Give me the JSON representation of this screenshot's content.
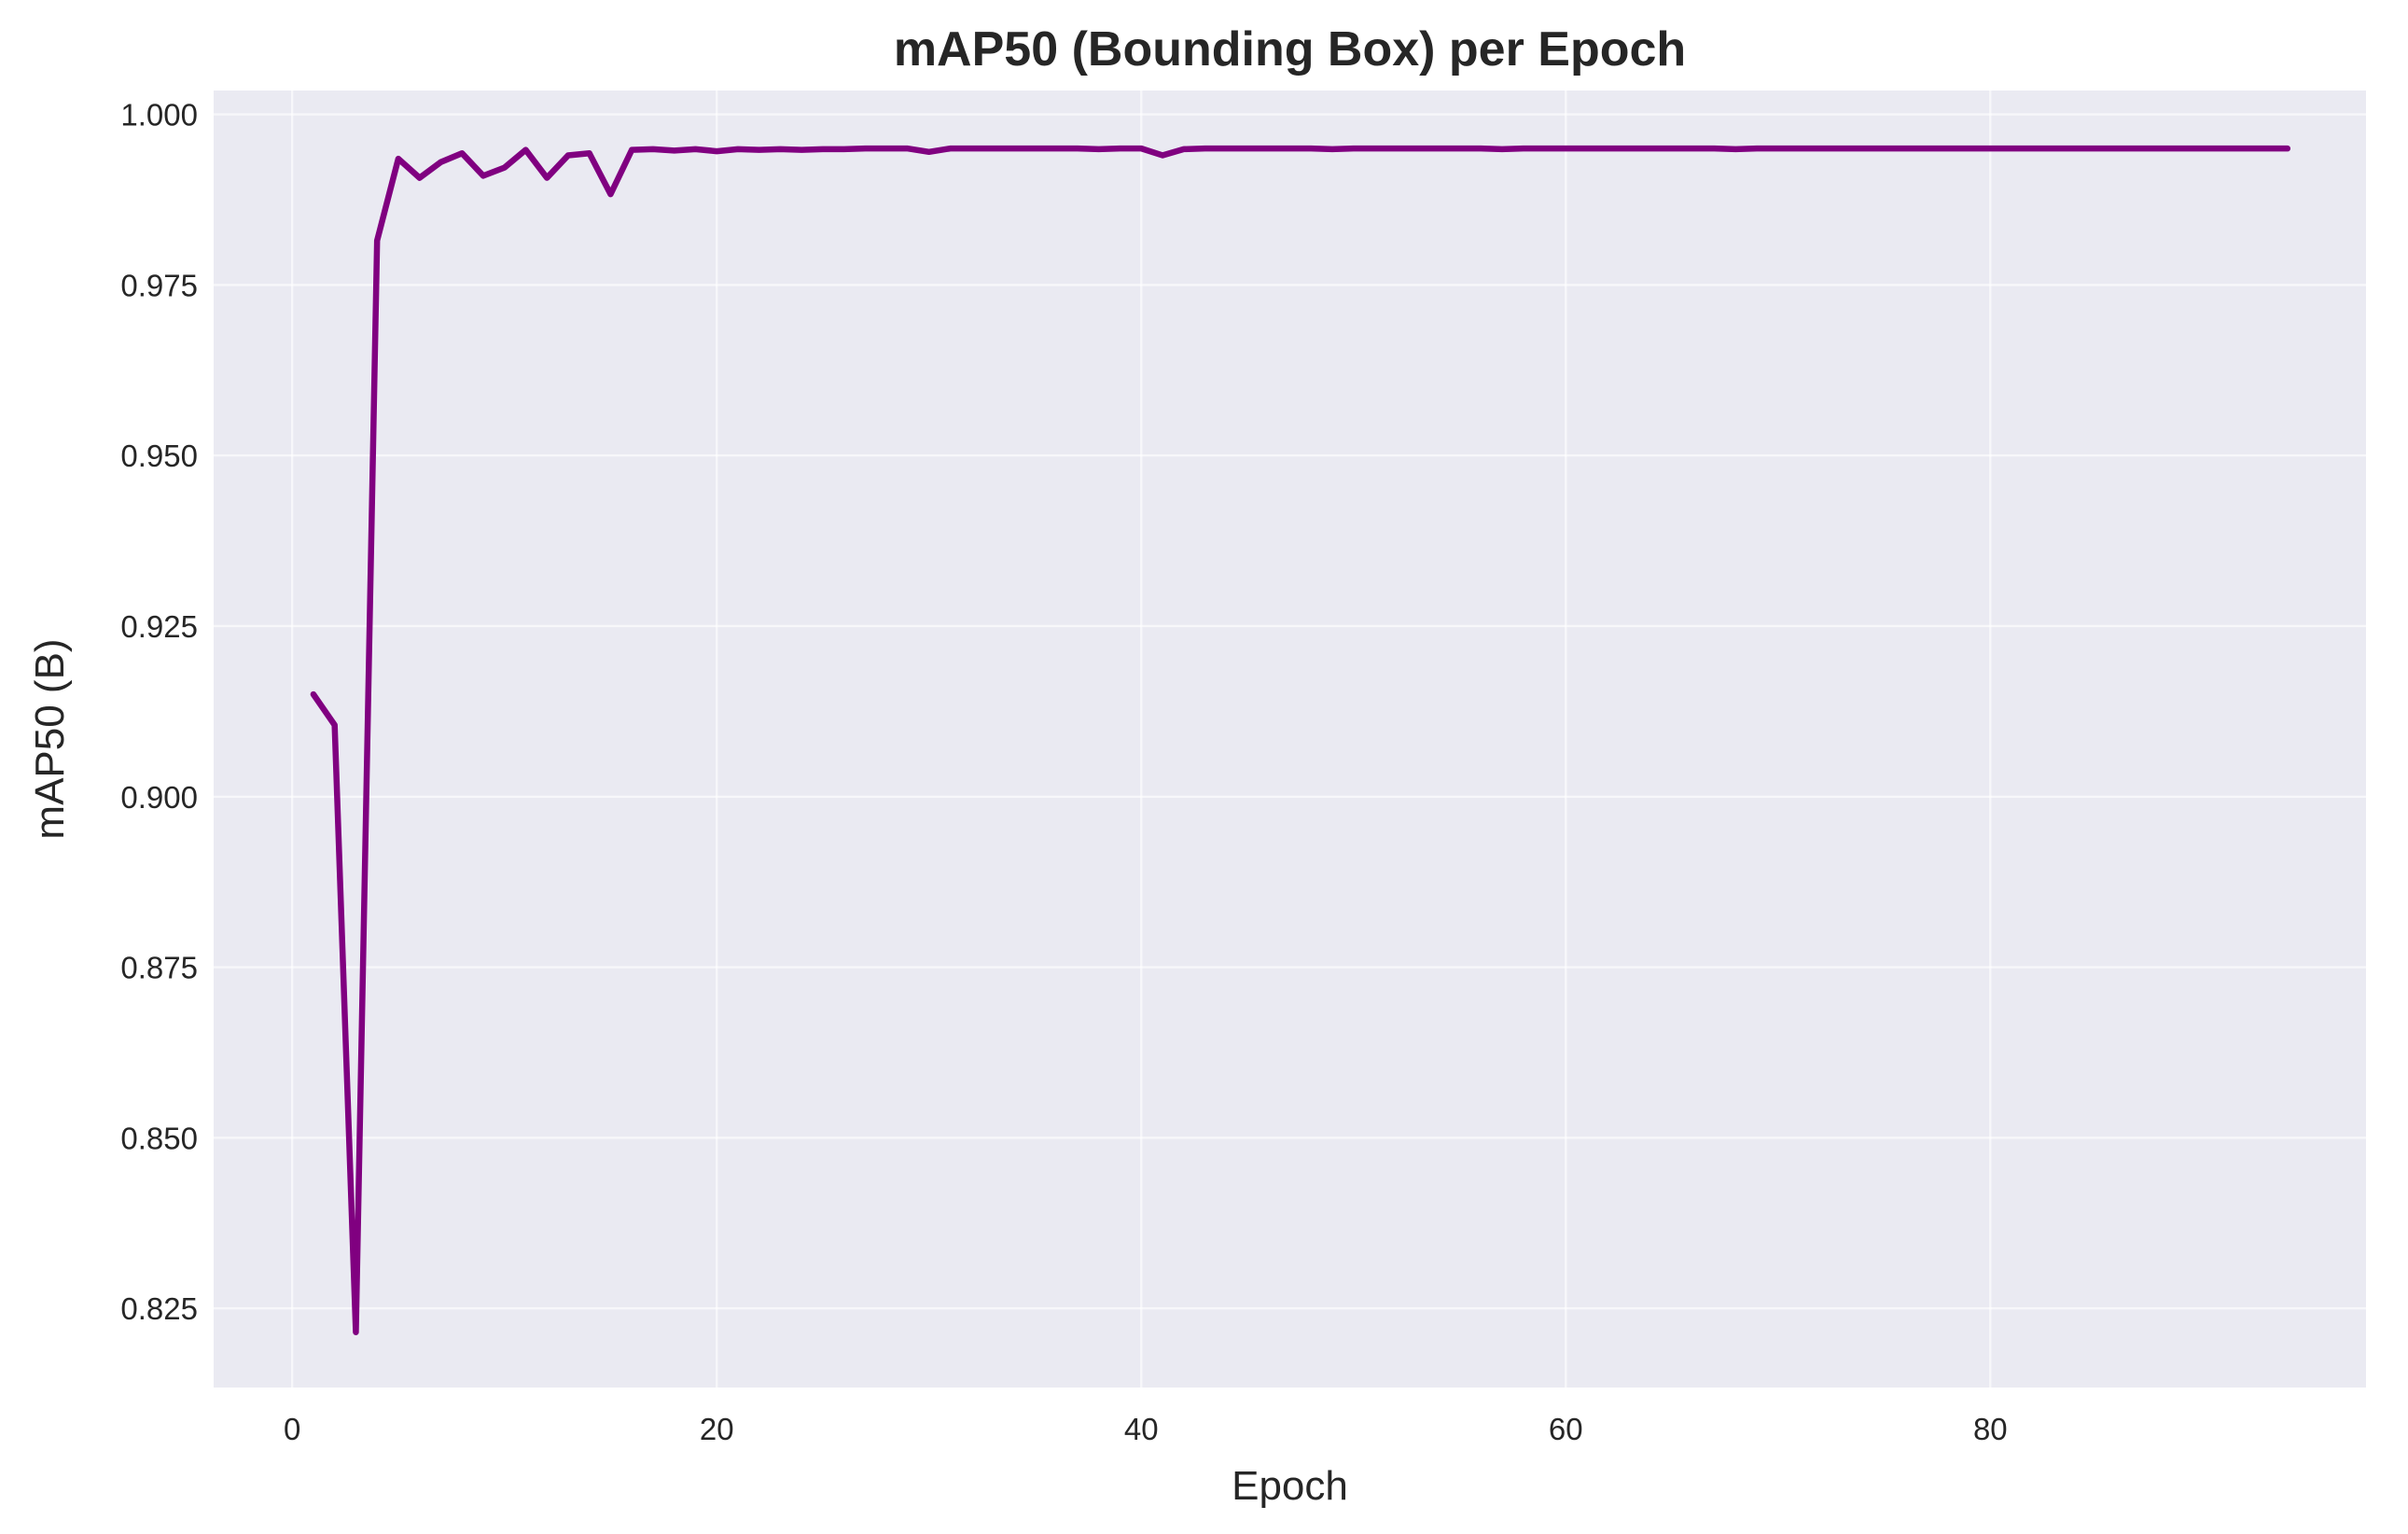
{
  "chart_data": {
    "type": "line",
    "title": "mAP50 (Bounding Box) per Epoch",
    "xlabel": "Epoch",
    "ylabel": "mAP50 (B)",
    "xlim": [
      -3.7,
      97.7
    ],
    "ylim": [
      0.8134,
      1.0035
    ],
    "xticks": [
      0,
      20,
      40,
      60,
      80
    ],
    "xtick_labels": [
      "0",
      "20",
      "40",
      "60",
      "80"
    ],
    "yticks": [
      0.825,
      0.85,
      0.875,
      0.9,
      0.925,
      0.95,
      0.975,
      1.0
    ],
    "ytick_labels": [
      "0.825",
      "0.850",
      "0.875",
      "0.900",
      "0.925",
      "0.950",
      "0.975",
      "1.000"
    ],
    "grid": true,
    "colors": {
      "line": "#800080",
      "plot_bg": "#eaeaf2",
      "grid": "#ffffff",
      "text": "#262626"
    },
    "series": [
      {
        "x": [
          1,
          2,
          3,
          4,
          5,
          6,
          7,
          8,
          9,
          10,
          11,
          12,
          13,
          14,
          15,
          16,
          17,
          18,
          19,
          20,
          21,
          22,
          23,
          24,
          25,
          26,
          27,
          28,
          29,
          30,
          31,
          32,
          33,
          34,
          35,
          36,
          37,
          38,
          39,
          40,
          41,
          42,
          43,
          44,
          45,
          46,
          47,
          48,
          49,
          50,
          51,
          52,
          53,
          54,
          55,
          56,
          57,
          58,
          59,
          60,
          61,
          62,
          63,
          64,
          65,
          66,
          67,
          68,
          69,
          70,
          71,
          72,
          73,
          74,
          75,
          76,
          77,
          78,
          79,
          80,
          81,
          82,
          83,
          84,
          85,
          86,
          87,
          88,
          89,
          90,
          91,
          92,
          93,
          94
        ],
        "values": [
          0.915,
          0.9105,
          0.8215,
          0.9815,
          0.9935,
          0.9907,
          0.993,
          0.9943,
          0.991,
          0.9922,
          0.9948,
          0.9907,
          0.994,
          0.9943,
          0.9883,
          0.9948,
          0.9949,
          0.9947,
          0.9949,
          0.9946,
          0.9949,
          0.9948,
          0.9949,
          0.9948,
          0.9949,
          0.9949,
          0.995,
          0.995,
          0.995,
          0.9945,
          0.995,
          0.995,
          0.995,
          0.995,
          0.995,
          0.995,
          0.995,
          0.9949,
          0.995,
          0.995,
          0.994,
          0.9949,
          0.995,
          0.995,
          0.995,
          0.995,
          0.995,
          0.995,
          0.9949,
          0.995,
          0.995,
          0.995,
          0.995,
          0.995,
          0.995,
          0.995,
          0.9949,
          0.995,
          0.995,
          0.995,
          0.995,
          0.995,
          0.995,
          0.995,
          0.995,
          0.995,
          0.995,
          0.9949,
          0.995,
          0.995,
          0.995,
          0.995,
          0.995,
          0.995,
          0.995,
          0.995,
          0.995,
          0.995,
          0.995,
          0.995,
          0.995,
          0.995,
          0.995,
          0.995,
          0.995,
          0.995,
          0.995,
          0.995,
          0.995,
          0.995,
          0.995,
          0.995,
          0.995,
          0.995
        ]
      }
    ]
  }
}
